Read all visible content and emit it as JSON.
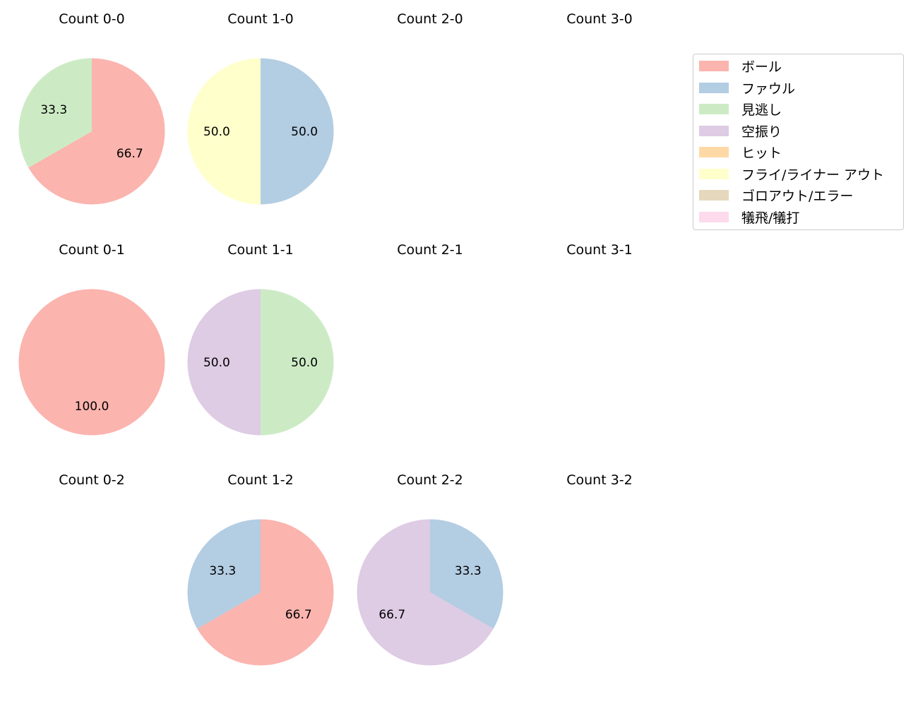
{
  "legend": {
    "items": [
      {
        "label": "ボール",
        "color": "#fbb4ae"
      },
      {
        "label": "ファウル",
        "color": "#b3cde3"
      },
      {
        "label": "見逃し",
        "color": "#ccebc5"
      },
      {
        "label": "空振り",
        "color": "#decbe4"
      },
      {
        "label": "ヒット",
        "color": "#fed9a6"
      },
      {
        "label": "フライ/ライナー アウト",
        "color": "#ffffcc"
      },
      {
        "label": "ゴロアウト/エラー",
        "color": "#e5d8bd"
      },
      {
        "label": "犠飛/犠打",
        "color": "#fddaec"
      }
    ]
  },
  "chart_data": {
    "type": "pie",
    "title": "",
    "layout": "3 rows x 4 columns of pies (strikes x balls) with shared legend on the right",
    "legend_position": "upper right",
    "categories": [
      "ボール",
      "ファウル",
      "見逃し",
      "空振り",
      "ヒット",
      "フライ/ライナー アウト",
      "ゴロアウト/エラー",
      "犠飛/犠打"
    ],
    "colors": [
      "#fbb4ae",
      "#b3cde3",
      "#ccebc5",
      "#decbe4",
      "#fed9a6",
      "#ffffcc",
      "#e5d8bd",
      "#fddaec"
    ],
    "panels": [
      {
        "title": "Count 0-0",
        "row": 0,
        "col": 0,
        "slices": [
          {
            "label": "ボール",
            "value": 66.7
          },
          {
            "label": "見逃し",
            "value": 33.3
          }
        ]
      },
      {
        "title": "Count 1-0",
        "row": 0,
        "col": 1,
        "slices": [
          {
            "label": "ファウル",
            "value": 50.0
          },
          {
            "label": "フライ/ライナー アウト",
            "value": 50.0
          }
        ]
      },
      {
        "title": "Count 2-0",
        "row": 0,
        "col": 2,
        "slices": []
      },
      {
        "title": "Count 3-0",
        "row": 0,
        "col": 3,
        "slices": []
      },
      {
        "title": "Count 0-1",
        "row": 1,
        "col": 0,
        "slices": [
          {
            "label": "ボール",
            "value": 100.0
          }
        ]
      },
      {
        "title": "Count 1-1",
        "row": 1,
        "col": 1,
        "slices": [
          {
            "label": "見逃し",
            "value": 50.0
          },
          {
            "label": "空振り",
            "value": 50.0
          }
        ]
      },
      {
        "title": "Count 2-1",
        "row": 1,
        "col": 2,
        "slices": []
      },
      {
        "title": "Count 3-1",
        "row": 1,
        "col": 3,
        "slices": []
      },
      {
        "title": "Count 0-2",
        "row": 2,
        "col": 0,
        "slices": []
      },
      {
        "title": "Count 1-2",
        "row": 2,
        "col": 1,
        "slices": [
          {
            "label": "ボール",
            "value": 66.7
          },
          {
            "label": "ファウル",
            "value": 33.3
          }
        ]
      },
      {
        "title": "Count 2-2",
        "row": 2,
        "col": 2,
        "slices": [
          {
            "label": "ファウル",
            "value": 33.3
          },
          {
            "label": "空振り",
            "value": 66.7
          }
        ]
      },
      {
        "title": "Count 3-2",
        "row": 2,
        "col": 3,
        "slices": []
      }
    ]
  }
}
